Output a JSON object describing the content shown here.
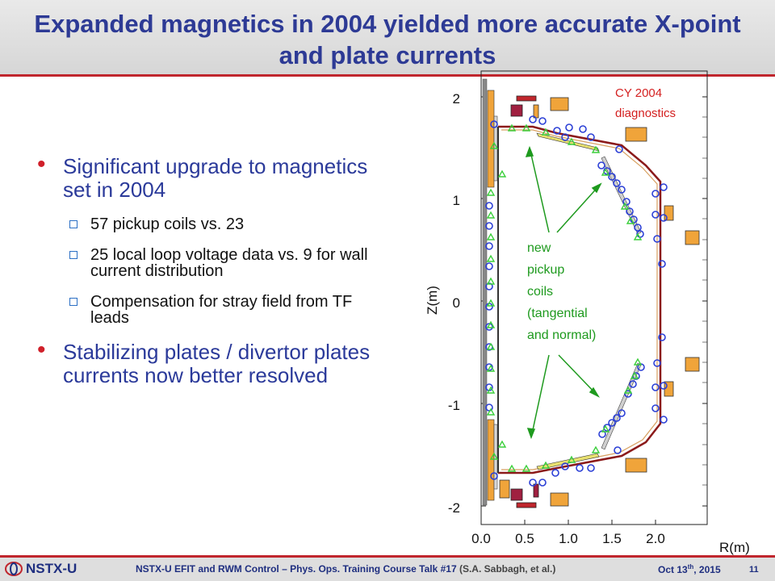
{
  "title": "Expanded magnetics in 2004 yielded more accurate X-point and plate currents",
  "bullets": [
    {
      "text": "Significant upgrade to magnetics set in 2004",
      "subs": [
        "57 pickup coils vs. 23",
        "25 local loop voltage data vs. 9 for wall current distribution",
        "Compensation for stray field from TF leads"
      ]
    },
    {
      "text": "Stabilizing plates / divertor plates currents now better resolved"
    }
  ],
  "figure": {
    "annotation_red": [
      "CY 2004",
      "diagnostics"
    ],
    "annotation_green": [
      "new",
      "pickup",
      "coils",
      "(tangential",
      "and normal)"
    ],
    "x_axis_label": "R(m)",
    "y_axis_label": "Z(m)",
    "x_ticks": [
      "0.0",
      "0.5",
      "1.0",
      "1.5",
      "2.0"
    ],
    "y_ticks": [
      "2",
      "1",
      "0",
      "-1",
      "-2"
    ],
    "colors": {
      "coil_marker": "#2b3fd6",
      "new_coil_marker": "#3ccf3c",
      "wall": "#8b1a1a",
      "annotation_red": "#d42020",
      "annotation_green": "#1e9a1e",
      "pf_coil": "#f0a43a"
    }
  },
  "footer": {
    "logo_text": "NSTX-U",
    "course_text": "NSTX-U EFIT and RWM Control – Phys. Ops. Training Course Talk #17",
    "citation": "(S.A. Sabbagh, et al.)",
    "date_prefix": "Oct 13",
    "date_sup": "th",
    "date_year": ", 2015",
    "page": "11"
  }
}
